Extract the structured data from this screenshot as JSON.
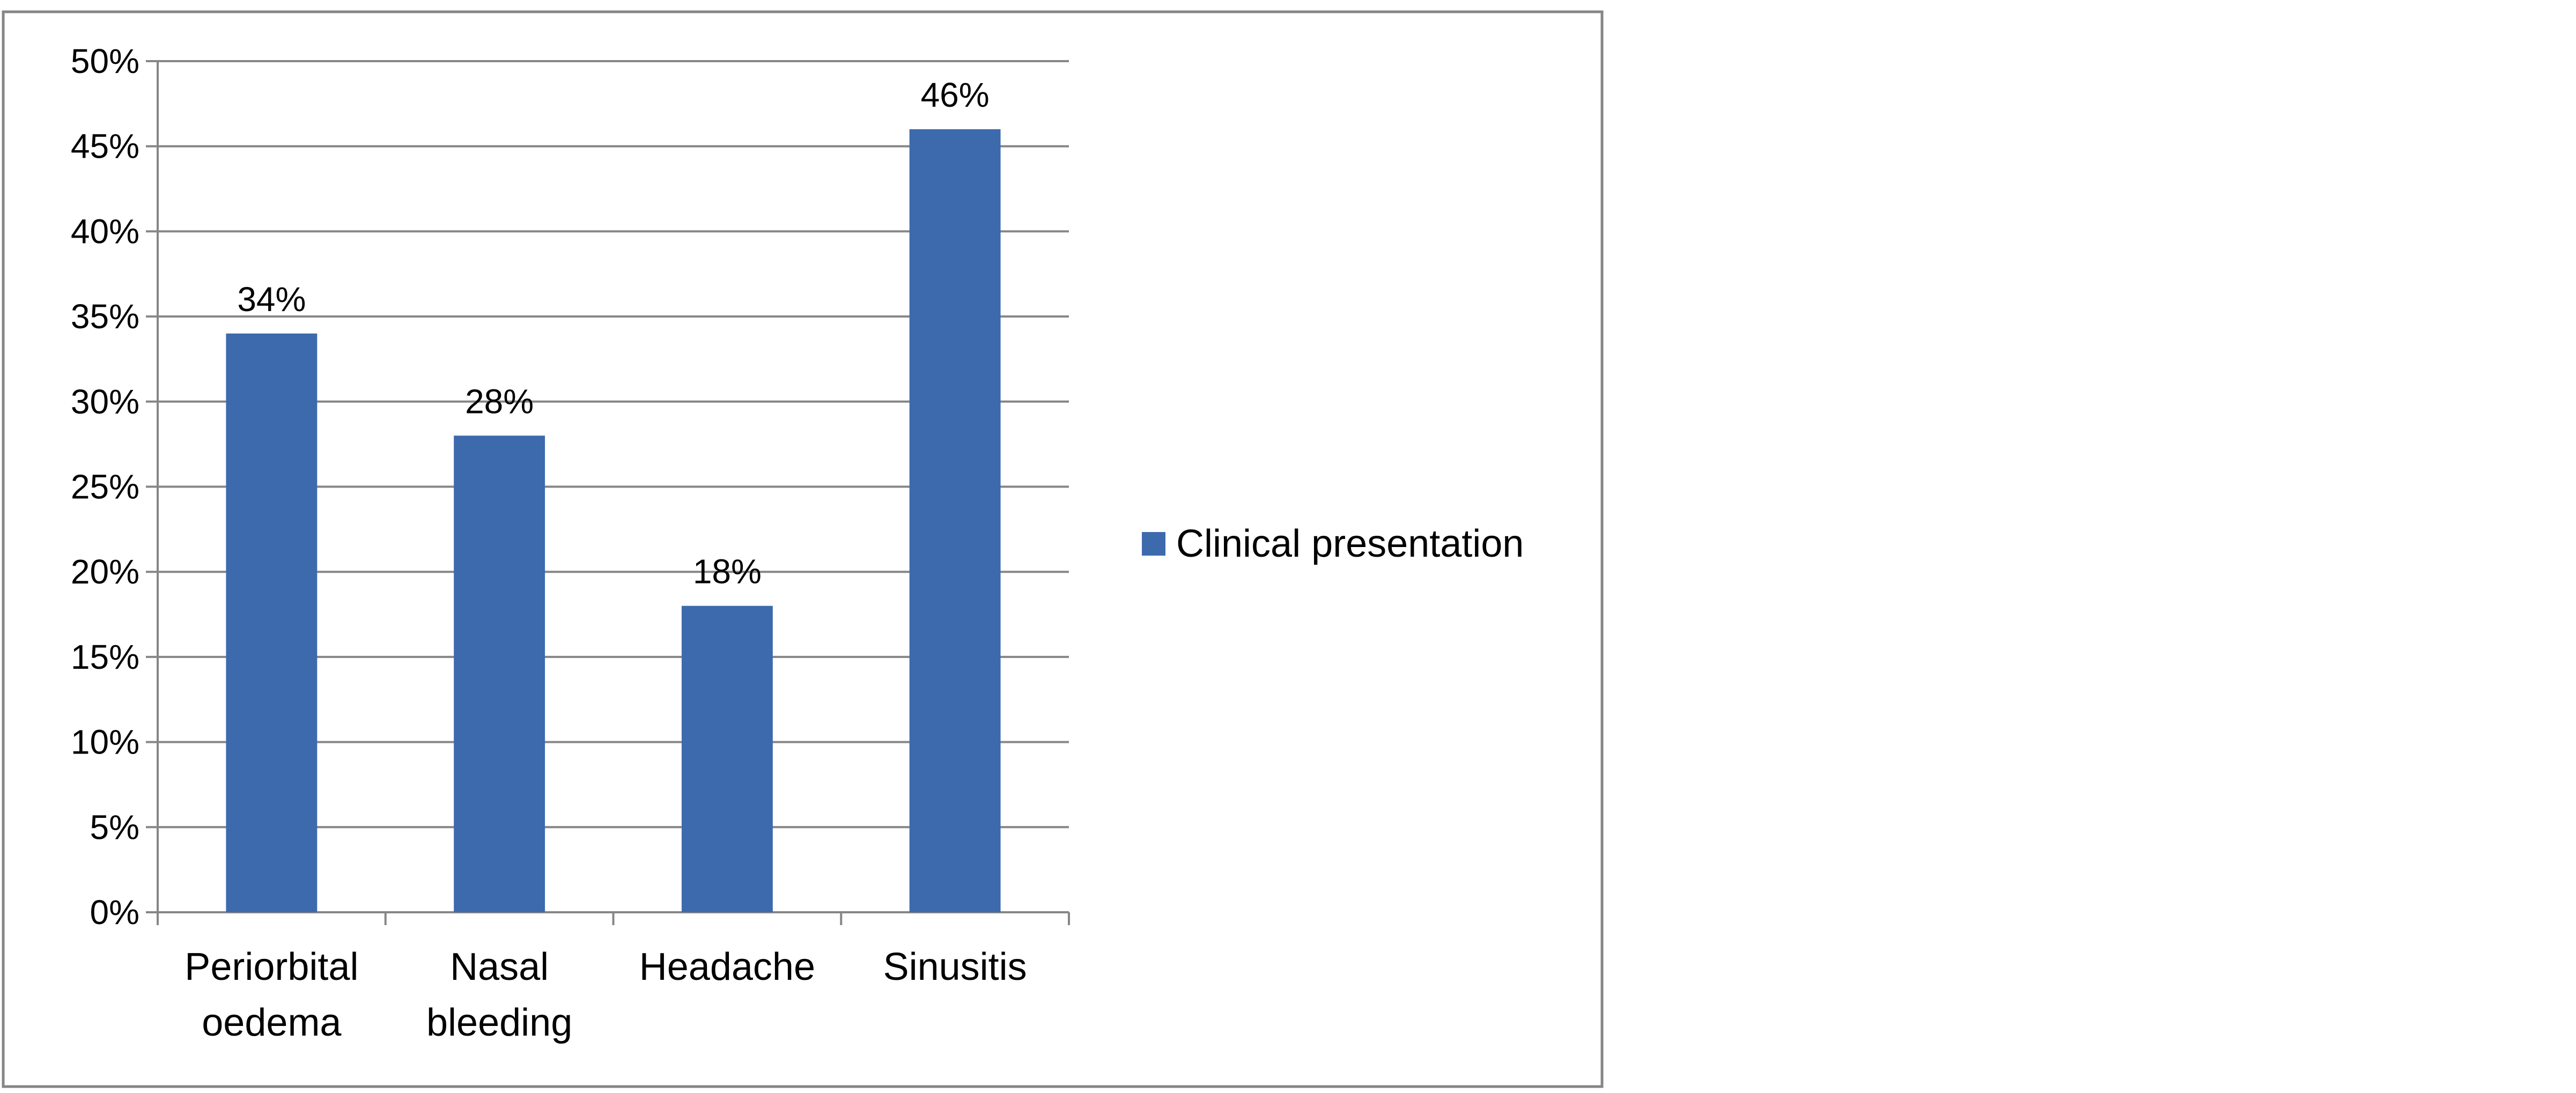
{
  "chart_data": {
    "type": "bar",
    "categories": [
      [
        "Periorbital",
        "oedema"
      ],
      [
        "Nasal",
        "bleeding"
      ],
      [
        "Headache"
      ],
      [
        "Sinusitis"
      ]
    ],
    "series": [
      {
        "name": "Clinical presentation",
        "values": [
          34,
          28,
          18,
          46
        ],
        "color": "#3d6aad"
      }
    ],
    "data_labels": [
      "34%",
      "28%",
      "18%",
      "46%"
    ],
    "ylim": [
      0,
      50
    ],
    "yticks": [
      0,
      5,
      10,
      15,
      20,
      25,
      30,
      35,
      40,
      45,
      50
    ],
    "ytick_labels": [
      "0%",
      "5%",
      "10%",
      "15%",
      "20%",
      "25%",
      "30%",
      "35%",
      "40%",
      "45%",
      "50%"
    ],
    "grid": true,
    "legend_position": "right",
    "colors": {
      "bar": "#3d6aad",
      "grid": "#868686",
      "frame": "#868686"
    }
  }
}
